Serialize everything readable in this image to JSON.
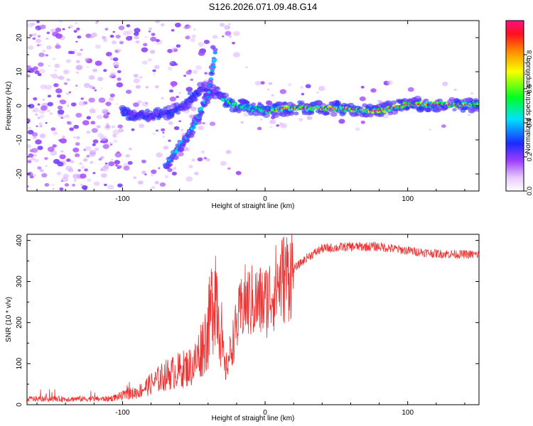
{
  "figure": {
    "title": "S126.2026.071.09.48.G14"
  },
  "chart_data": [
    {
      "type": "heatmap",
      "xlabel": "Height of straight line (km)",
      "ylabel": "Frequency (Hz)",
      "xlim": [
        -167,
        150
      ],
      "ylim": [
        -25,
        25
      ],
      "xticks": [
        -100,
        0,
        100
      ],
      "yticks": [
        -20,
        -10,
        0,
        10,
        20
      ],
      "colorbar": {
        "label": "Normalized spectral amplitude",
        "range": [
          0,
          1
        ],
        "ticks": [
          "0.0",
          "0.2",
          "0.4",
          "0.6",
          "0.8"
        ]
      },
      "features": {
        "doppler_track": {
          "x": [
            -100,
            -80,
            -60,
            -45,
            -35,
            -30,
            -20,
            0,
            20,
            50,
            80,
            100,
            150
          ],
          "y": [
            -2,
            -3,
            -1,
            5,
            4,
            2,
            0,
            -1.5,
            -0.5,
            -0.8,
            -1.5,
            0.5,
            0.2
          ]
        },
        "lower_branch": {
          "x": [
            -70,
            -60,
            -50,
            -40,
            -35
          ],
          "y": [
            -18,
            -12,
            -6,
            3,
            15
          ]
        }
      }
    },
    {
      "type": "line",
      "series": [
        {
          "name": "SNR",
          "x": [
            -167,
            -140,
            -110,
            -90,
            -70,
            -50,
            -40,
            -35,
            -28,
            -20,
            -15,
            -10,
            0,
            10,
            20,
            30,
            40,
            60,
            80,
            100,
            120,
            150
          ],
          "values": [
            12,
            12,
            12,
            25,
            60,
            80,
            150,
            250,
            80,
            190,
            250,
            250,
            250,
            300,
            330,
            360,
            380,
            385,
            385,
            375,
            368,
            365
          ]
        }
      ],
      "xlabel": "Height of straight line (km)",
      "ylabel": "SNR (10 * v/v)",
      "xlim": [
        -167,
        150
      ],
      "ylim": [
        0,
        415
      ],
      "xticks": [
        -100,
        0,
        100
      ],
      "yticks": [
        0,
        100,
        200,
        300,
        400
      ],
      "color": "#ee3333"
    }
  ]
}
